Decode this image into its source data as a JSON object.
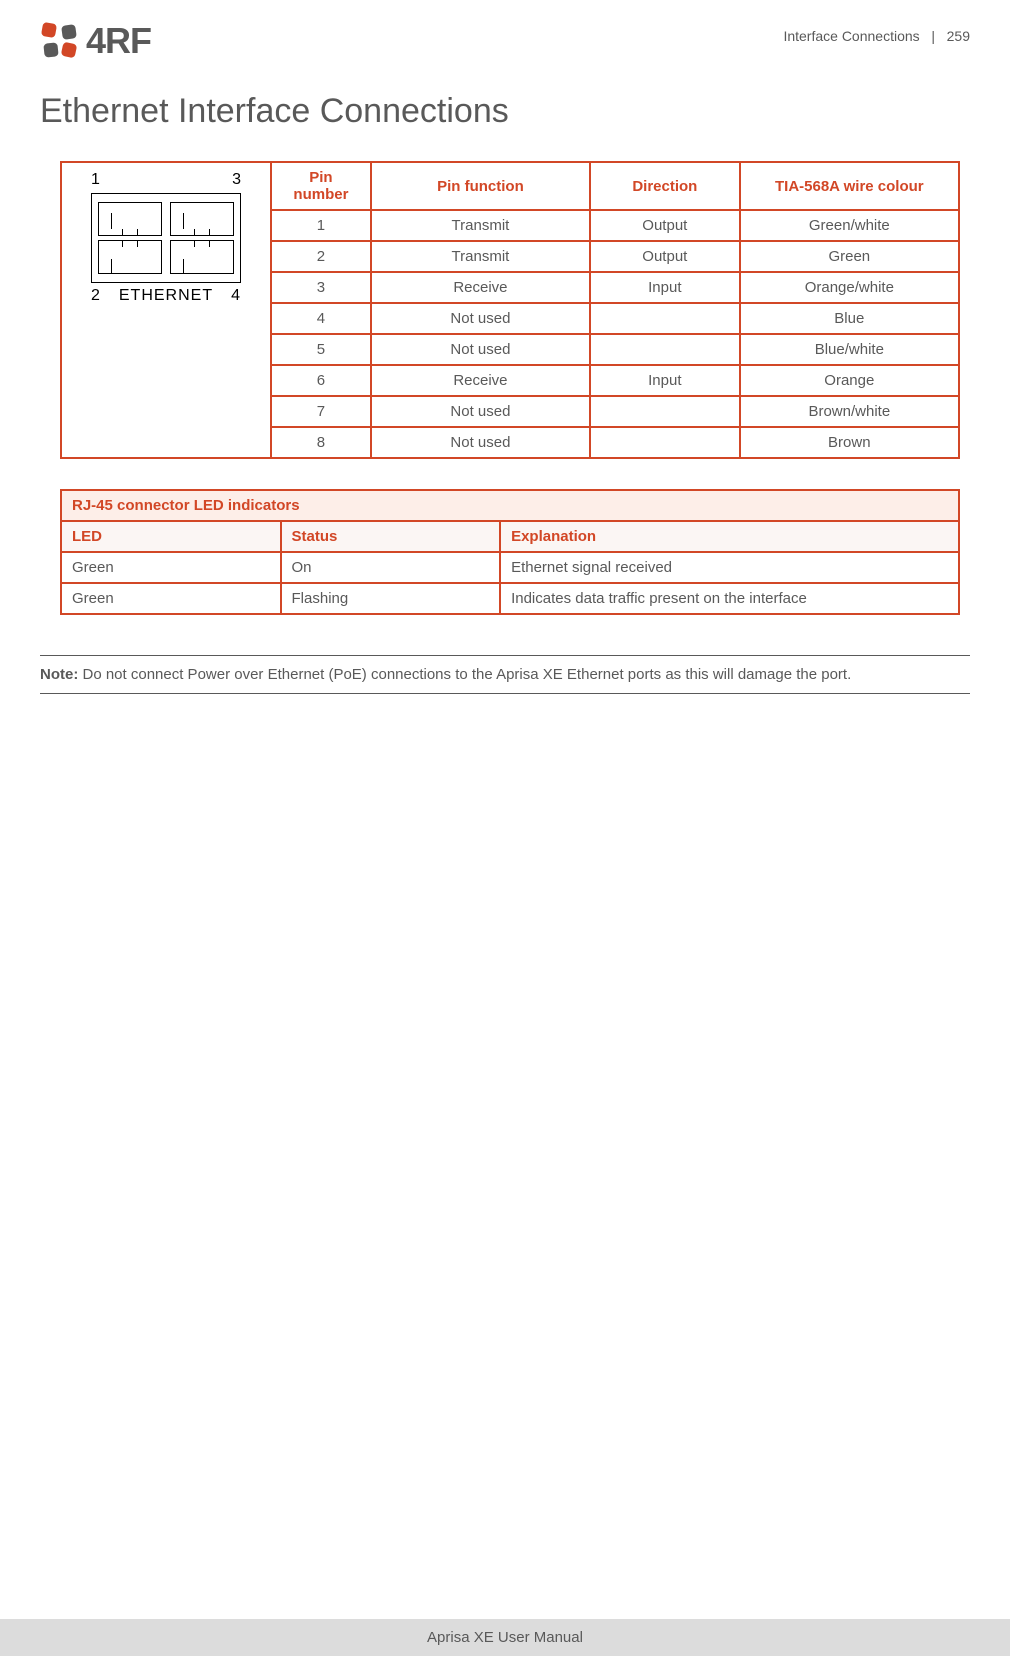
{
  "header": {
    "logo_text": "4RF",
    "breadcrumb_section": "Interface Connections",
    "breadcrumb_sep": "|",
    "page_number": "259"
  },
  "page_title": "Ethernet Interface Connections",
  "diagram": {
    "top_left": "1",
    "top_right": "3",
    "bot_left": "2",
    "bot_mid": "ETHERNET",
    "bot_right": "4"
  },
  "pin_table": {
    "columns": [
      "Pin number",
      "Pin function",
      "Direction",
      "TIA-568A wire colour"
    ],
    "col_widths": [
      "100px",
      "220px",
      "150px",
      "220px"
    ],
    "rows": [
      [
        "1",
        "Transmit",
        "Output",
        "Green/white"
      ],
      [
        "2",
        "Transmit",
        "Output",
        "Green"
      ],
      [
        "3",
        "Receive",
        "Input",
        "Orange/white"
      ],
      [
        "4",
        "Not used",
        "",
        "Blue"
      ],
      [
        "5",
        "Not used",
        "",
        "Blue/white"
      ],
      [
        "6",
        "Receive",
        "Input",
        "Orange"
      ],
      [
        "7",
        "Not used",
        "",
        "Brown/white"
      ],
      [
        "8",
        "Not used",
        "",
        "Brown"
      ]
    ]
  },
  "led_table": {
    "title": "RJ-45 connector LED indicators",
    "columns": [
      "LED",
      "Status",
      "Explanation"
    ],
    "col_widths": [
      "220px",
      "220px",
      "460px"
    ],
    "rows": [
      [
        "Green",
        "On",
        "Ethernet signal received"
      ],
      [
        "Green",
        "Flashing",
        "Indicates data traffic present on the interface"
      ]
    ]
  },
  "note": {
    "label": "Note:",
    "text": " Do not connect Power over Ethernet (PoE) connections to the Aprisa XE Ethernet ports as this will damage the port."
  },
  "footer": "Aprisa XE User Manual",
  "colors": {
    "accent": "#d24726",
    "text": "#595959",
    "led_title_bg": "#fdeee8",
    "led_head_bg": "#fbf6f4",
    "footer_bg": "#dcdcdc"
  }
}
